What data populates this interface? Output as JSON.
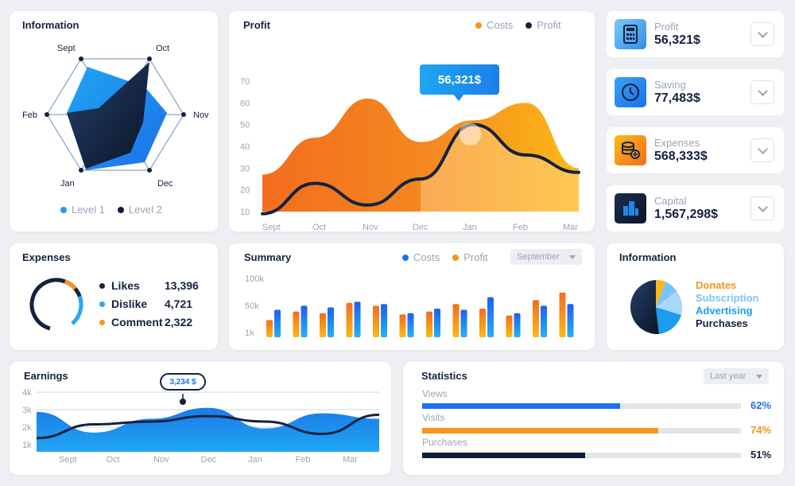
{
  "information_radar": {
    "title": "Information",
    "axes": [
      "Sept",
      "Oct",
      "Nov",
      "Dec",
      "Jan",
      "Feb"
    ],
    "legend": [
      {
        "label": "Level 1",
        "color": "#1a9cf0"
      },
      {
        "label": "Level 2",
        "color": "#0e1c35"
      }
    ]
  },
  "profit_chart": {
    "title": "Profit",
    "legend": [
      {
        "label": "Costs",
        "color": "#f7941d"
      },
      {
        "label": "Profit",
        "color": "#13223f"
      }
    ],
    "tooltip": "56,321$",
    "chart_data": {
      "type": "area",
      "x": [
        "Sept",
        "Oct",
        "Nov",
        "Dec",
        "Jan",
        "Feb",
        "Mar"
      ],
      "yticks": [
        10,
        20,
        30,
        40,
        50,
        60,
        70
      ],
      "ylim": [
        10,
        70
      ],
      "series": [
        {
          "name": "Costs",
          "values": [
            27,
            44,
            62,
            42,
            52,
            60,
            30
          ]
        },
        {
          "name": "Profit",
          "values": [
            9,
            23,
            13,
            25,
            50,
            36,
            28
          ]
        }
      ]
    }
  },
  "stat_cards": [
    {
      "label": "Profit",
      "value": "56,321$",
      "icon": "calculator-icon",
      "color": "#45a8f0"
    },
    {
      "label": "Saving",
      "value": "77,483$",
      "icon": "clock-icon",
      "color": "#1e88e5"
    },
    {
      "label": "Expenses",
      "value": "568,333$",
      "icon": "coins-icon",
      "color": "#f7941d"
    },
    {
      "label": "Capital",
      "value": "1,567,298$",
      "icon": "building-icon",
      "color": "#0e1c35"
    }
  ],
  "expenses": {
    "title": "Expenses",
    "items": [
      {
        "label": "Likes",
        "value": "13,396",
        "color": "#13223f"
      },
      {
        "label": "Dislike",
        "value": "4,721",
        "color": "#25a9f2"
      },
      {
        "label": "Comment",
        "value": "2,322",
        "color": "#f7941d"
      }
    ]
  },
  "summary": {
    "title": "Summary",
    "legend": [
      {
        "label": "Costs",
        "color": "#1e6ff0"
      },
      {
        "label": "Profit",
        "color": "#f7941d"
      }
    ],
    "dropdown": "September",
    "chart_data": {
      "type": "bar",
      "yticks": [
        "100k",
        "50k",
        "1k"
      ],
      "series": [
        {
          "name": "Profit",
          "values": [
            30,
            45,
            42,
            60,
            55,
            40,
            45,
            58,
            50,
            38,
            65,
            78
          ]
        },
        {
          "name": "Costs",
          "values": [
            48,
            55,
            52,
            62,
            58,
            42,
            50,
            48,
            70,
            42,
            55,
            58
          ]
        }
      ]
    }
  },
  "info_pie": {
    "title": "Information",
    "items": [
      {
        "label": "Donates",
        "color": "#f7941d"
      },
      {
        "label": "Subscription",
        "color": "#7cc3f5"
      },
      {
        "label": "Advertising",
        "color": "#1a9cf0"
      },
      {
        "label": "Purchases",
        "color": "#13223f"
      }
    ]
  },
  "earnings": {
    "title": "Earnings",
    "tooltip": "3,234 $",
    "chart_data": {
      "type": "area",
      "x": [
        "Sept",
        "Oct",
        "Nov",
        "Dec",
        "Jan",
        "Feb",
        "Mar"
      ],
      "yticks": [
        "4k",
        "3k",
        "2k",
        "1k"
      ],
      "series": [
        {
          "name": "Area",
          "values": [
            2.9,
            1.4,
            2.4,
            3.2,
            1.7,
            2.8,
            2.4
          ]
        },
        {
          "name": "Line",
          "values": [
            1.0,
            2.0,
            2.2,
            2.6,
            2.2,
            1.3,
            2.7
          ]
        }
      ]
    }
  },
  "statistics": {
    "title": "Statistics",
    "dropdown": "Last year",
    "rows": [
      {
        "label": "Views",
        "pct_text": "62%",
        "value": 62,
        "color": "#1e6ff0"
      },
      {
        "label": "Visits",
        "pct_text": "74%",
        "value": 74,
        "color": "#f7941d"
      },
      {
        "label": "Purchases",
        "pct_text": "51%",
        "value": 51,
        "color": "#0e1c35"
      }
    ]
  }
}
